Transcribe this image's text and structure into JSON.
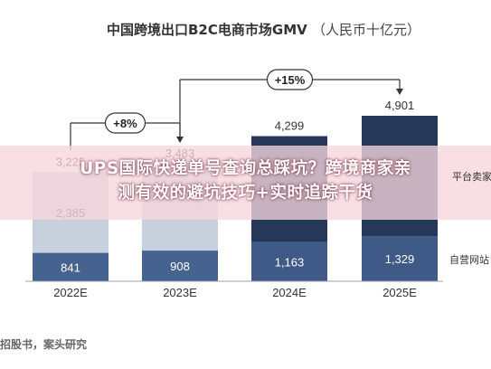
{
  "title": {
    "main": "中国跨境出口B2C电商市场GMV",
    "unit": "（人民币十亿元）"
  },
  "banner": {
    "line1": "UPS国际快递单号查询总踩坑？跨境商家亲",
    "line2": "测有效的避坑技巧+实时追踪干货"
  },
  "source": "招股书，案头研究",
  "legend_visible": [
    "平台卖家",
    "自营网站"
  ],
  "growth": [
    {
      "label": "+8%"
    },
    {
      "label": "+15%"
    }
  ],
  "chart_data": {
    "type": "bar",
    "stacked": true,
    "categories": [
      "2022E",
      "2023E",
      "2024E",
      "2025E"
    ],
    "series": [
      {
        "name": "自营网站",
        "values": [
          841,
          908,
          1163,
          1329
        ],
        "color": "#46628f",
        "label_color": "#ffffff"
      },
      {
        "name": "平台卖家",
        "values": [
          2385,
          2575,
          3136,
          3572
        ],
        "color": "#c7d0dd",
        "label_color": "#3a4a63"
      }
    ],
    "visible_segment_labels": [
      [
        "841",
        "908",
        "1,163",
        "1,329"
      ],
      [
        "2,385",
        "",
        "",
        ""
      ]
    ],
    "totals": [
      3225,
      3483,
      4299,
      4901
    ],
    "total_labels": [
      "3,225",
      "3,483",
      "4,299",
      "4,901"
    ],
    "highlight_total_color": "#26385a",
    "ylim": [
      0,
      4901
    ]
  }
}
